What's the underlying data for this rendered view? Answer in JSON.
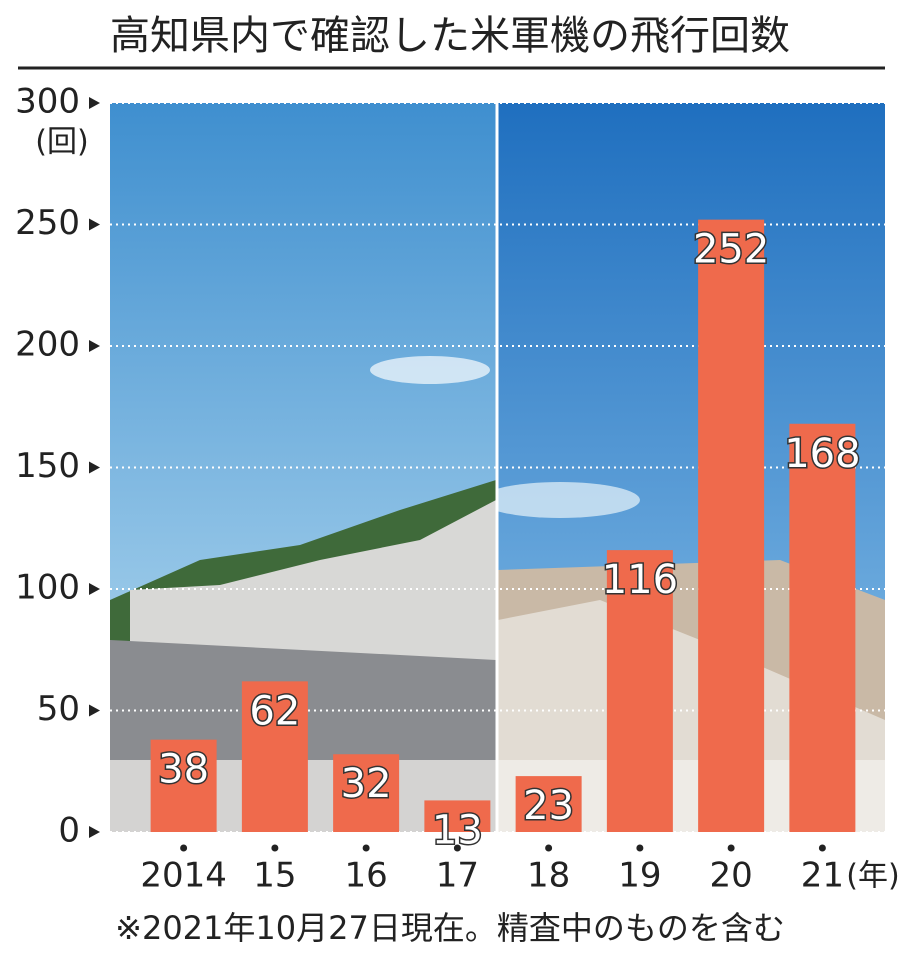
{
  "chart_data": {
    "type": "bar",
    "title": "高知県内で確認した米軍機の飛行回数",
    "y_label": "(回)",
    "x_label": "(年)",
    "note": "※2021年10月27日現在。精査中のものを含む",
    "categories": [
      "2014",
      "15",
      "16",
      "17",
      "18",
      "19",
      "20",
      "21"
    ],
    "values": [
      38,
      62,
      32,
      13,
      23,
      116,
      252,
      168
    ],
    "color": "#ef6a4c",
    "ylim": [
      0,
      300
    ],
    "yticks": [
      0,
      50,
      100,
      150,
      200,
      250,
      300
    ],
    "grid": true
  }
}
